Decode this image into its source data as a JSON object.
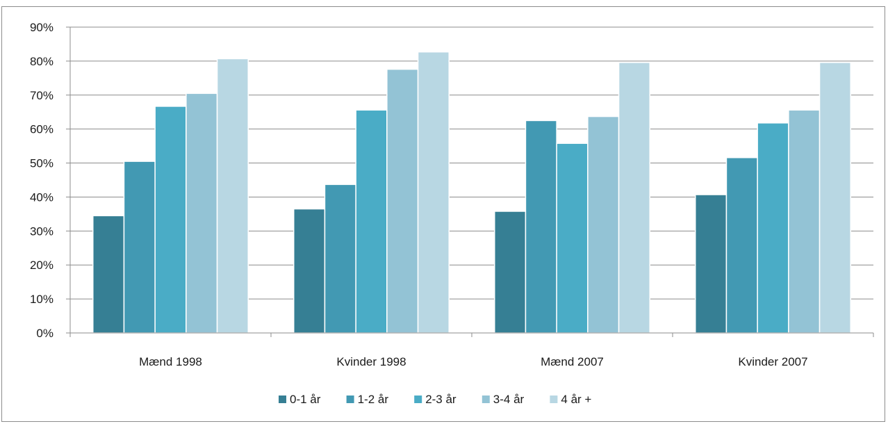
{
  "chart_data": {
    "type": "bar",
    "title": "",
    "xlabel": "",
    "ylabel": "",
    "categories": [
      "Mænd 1998",
      "Kvinder 1998",
      "Mænd 2007",
      "Kvinder 2007"
    ],
    "ylim": [
      0,
      90
    ],
    "yticks": [
      "0%",
      "10%",
      "20%",
      "30%",
      "40%",
      "50%",
      "60%",
      "70%",
      "80%",
      "90%"
    ],
    "grid": true,
    "legend_position": "bottom",
    "series": [
      {
        "name": "0-1 år",
        "color": "#367f94",
        "values": [
          34.5,
          36.5,
          35.8,
          40.7
        ]
      },
      {
        "name": "1-2 år",
        "color": "#4299b3",
        "values": [
          50.5,
          43.7,
          62.5,
          51.6
        ]
      },
      {
        "name": "2-3 år",
        "color": "#4aacc6",
        "values": [
          66.7,
          65.6,
          55.8,
          61.8
        ]
      },
      {
        "name": "3-4 år",
        "color": "#93c3d5",
        "values": [
          70.5,
          77.6,
          63.7,
          65.6
        ]
      },
      {
        "name": "4 år +",
        "color": "#b8d7e3",
        "values": [
          80.7,
          82.7,
          79.6,
          79.6
        ]
      }
    ]
  }
}
